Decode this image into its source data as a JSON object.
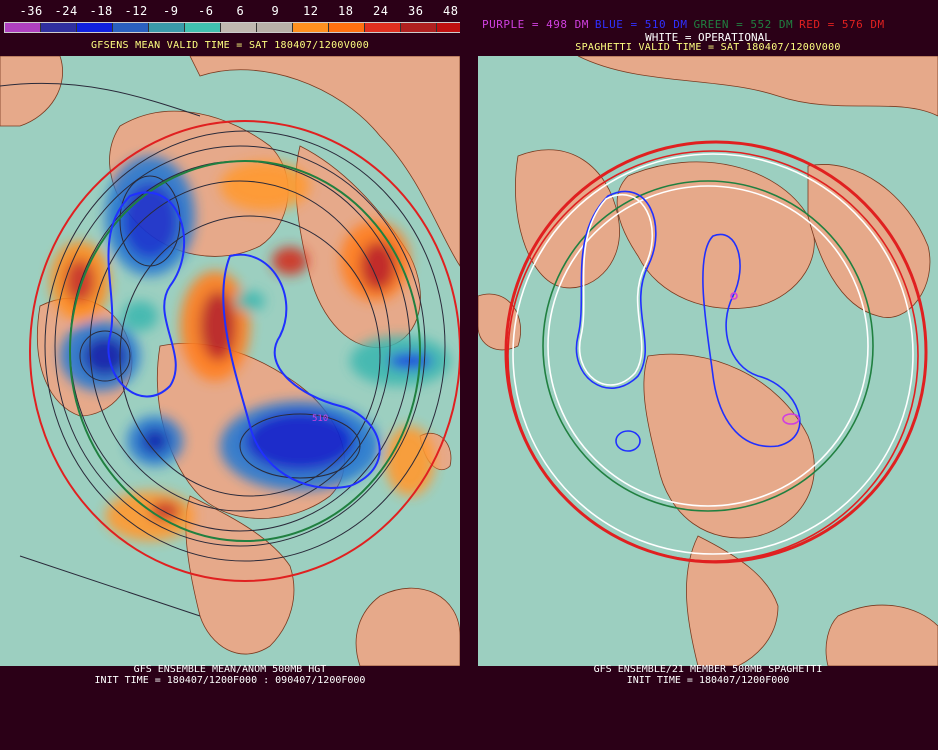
{
  "left_panel": {
    "colorbar": {
      "labels": [
        "-36",
        "-24",
        "-18",
        "-12",
        "-9",
        "-6",
        "6",
        "9",
        "12",
        "18",
        "24",
        "36",
        "48"
      ],
      "colors": [
        "#b040c0",
        "#3030a0",
        "#1020e0",
        "#2a60c0",
        "#3a9aaa",
        "#40c0b0",
        "#c0b8b0",
        "#b8b0a8",
        "#ff9020",
        "#ff7010",
        "#e03020",
        "#b02020",
        "#c01010",
        "#a02090"
      ]
    },
    "title": "GFSENS MEAN VALID TIME = SAT 180407/1200V000",
    "footer_line1": "GFS ENSEMBLE MEAN/ANOM 500MB HGT",
    "footer_line2": "INIT TIME = 180407/1200F000 : 090407/1200F000",
    "map_label": "510"
  },
  "right_panel": {
    "legend": [
      {
        "text": "PURPLE = 498 DM",
        "color": "#d040e0"
      },
      {
        "text": "BLUE = 510 DM",
        "color": "#3030ff"
      },
      {
        "text": "GREEN = 552 DM",
        "color": "#208040"
      },
      {
        "text": "RED = 576 DM",
        "color": "#e02020"
      }
    ],
    "operational": "WHITE = OPERATIONAL",
    "title": "SPAGHETTI VALID TIME = SAT 180407/1200V000",
    "footer_line1": "GFS ENSEMBLE/21 MEMBER 500MB SPAGHETTI",
    "footer_line2": "INIT TIME = 180407/1200F000"
  },
  "colors": {
    "ocean": "#9ccfc0",
    "land": "#e6a98a",
    "background": "#2b0017"
  }
}
